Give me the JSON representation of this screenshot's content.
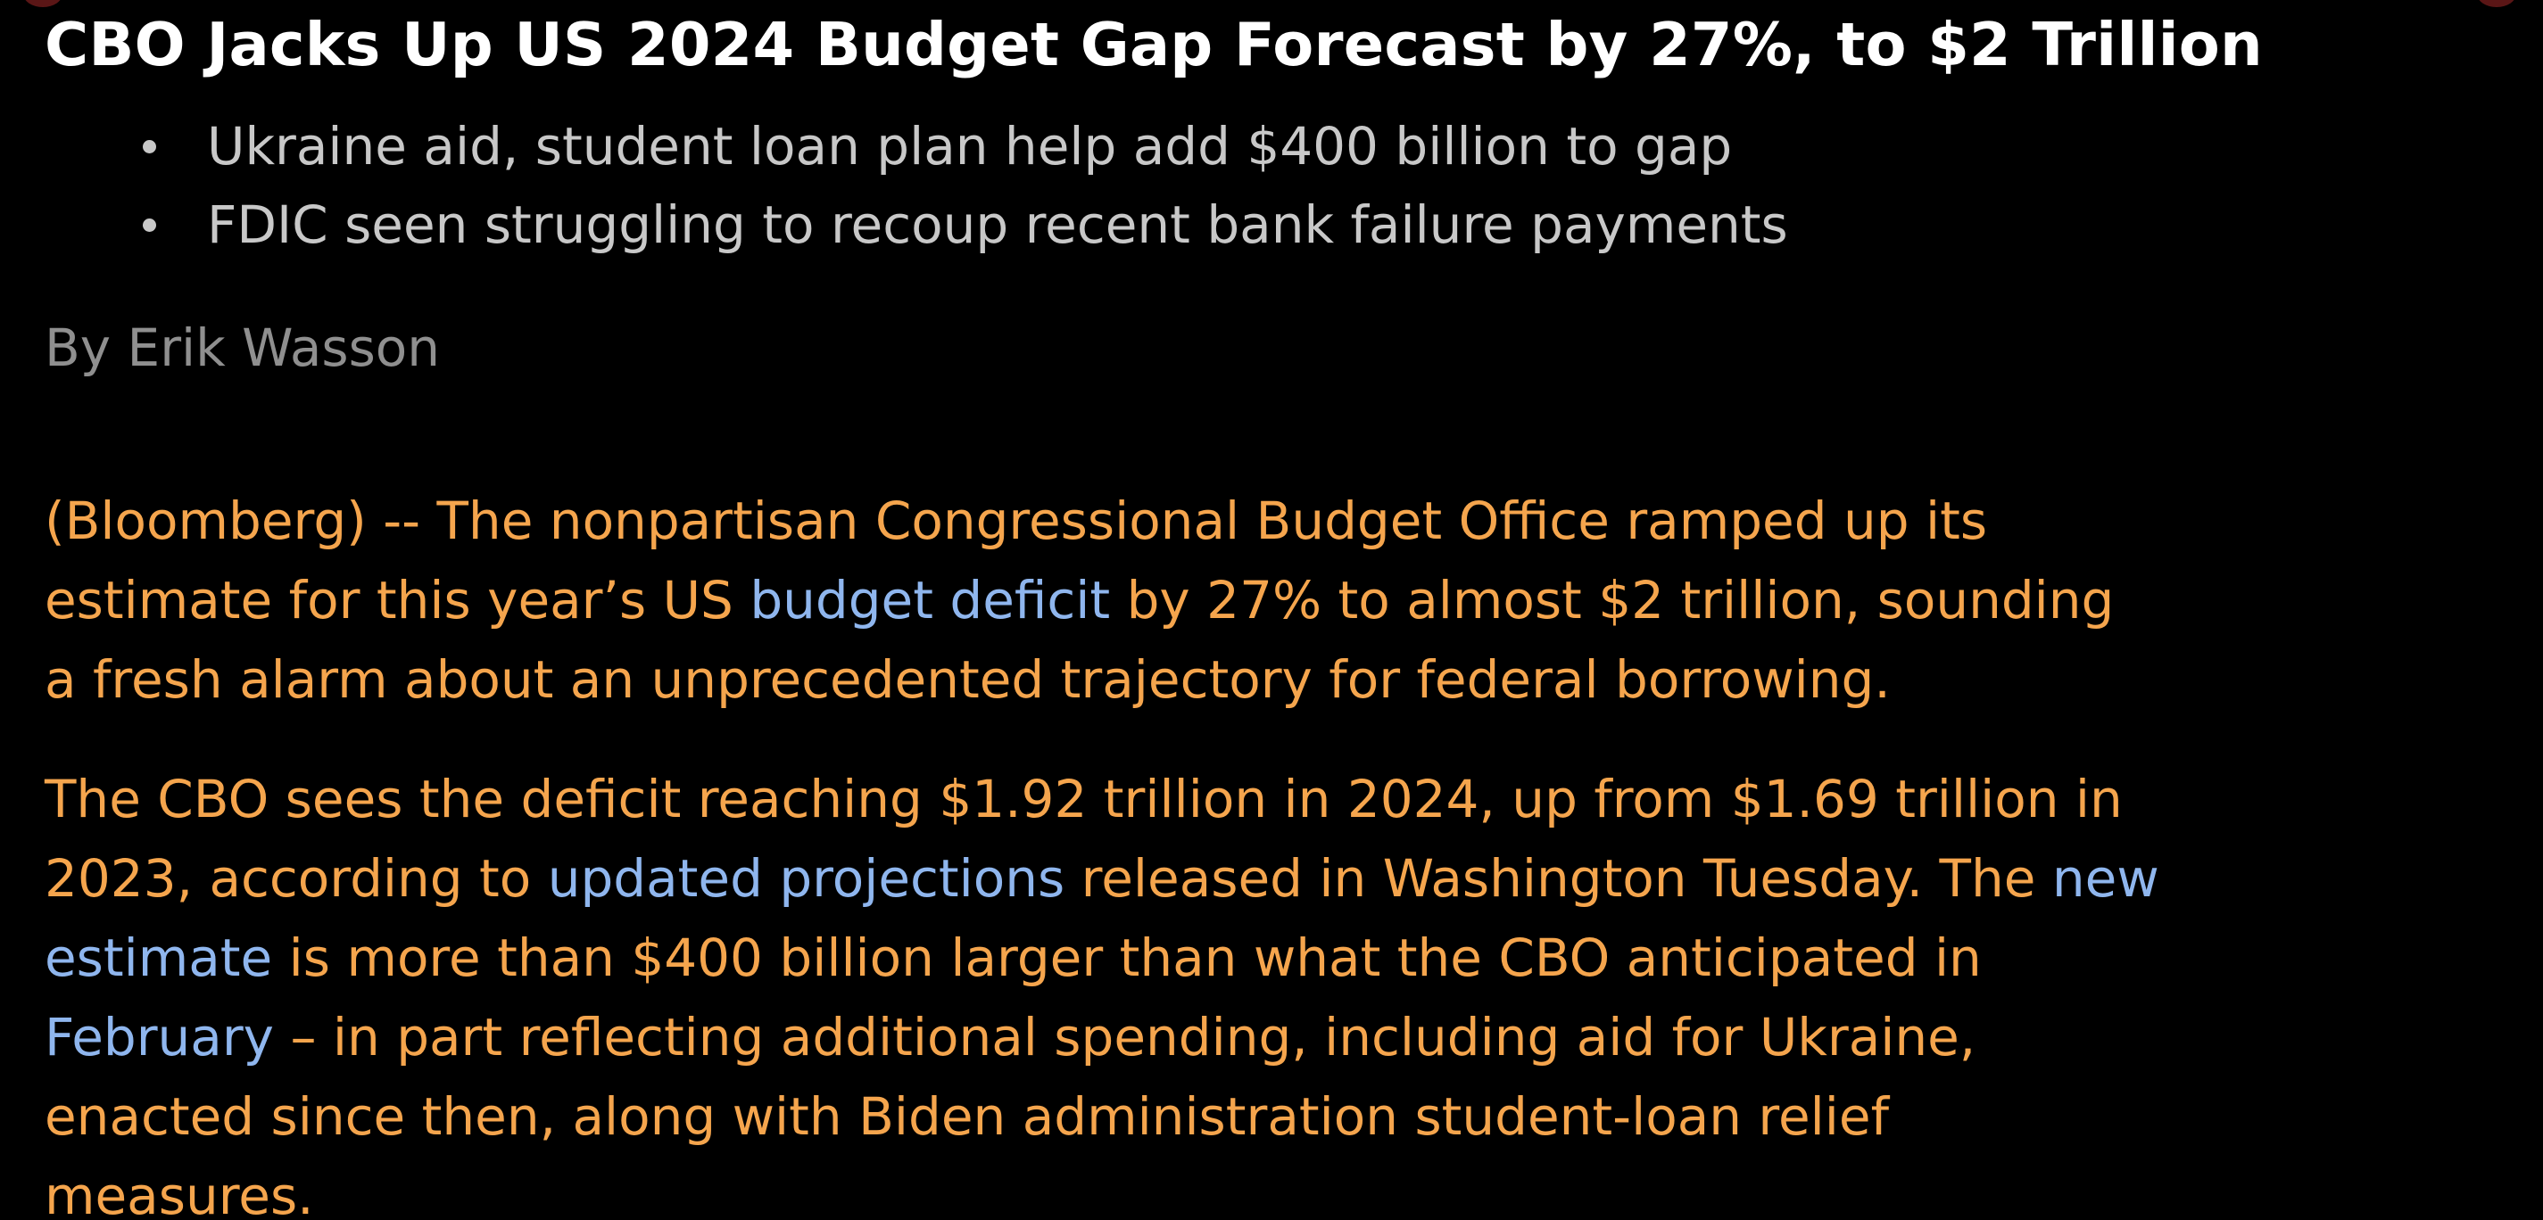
{
  "article": {
    "headline": "CBO Jacks Up US 2024 Budget Gap Forecast by 27%, to $2 Trillion",
    "bullets": [
      "Ukraine aid, student loan plan help add $400 billion to gap",
      "FDIC seen struggling to recoup recent bank failure payments"
    ],
    "byline": "By Erik Wasson",
    "paragraph1": {
      "line1": "(Bloomberg) -- The nonpartisan Congressional Budget Office ramped up its",
      "line2_before": "estimate for this year’s US ",
      "line2_link": "budget deficit",
      "line2_after": " by 27% to almost $2 trillion, sounding",
      "line3": "a fresh alarm about an unprecedented trajectory for federal borrowing."
    },
    "paragraph2": {
      "line1": "The CBO sees the deficit reaching $1.92 trillion in 2024, up from $1.69 trillion in",
      "line2_before": "2023, according to ",
      "line2_link1": "updated projections",
      "line2_middle": " released in Washington Tuesday. The ",
      "line2_link2": "new",
      "line3_link": "estimate",
      "line3_after": " is more than $400 billion larger than what the CBO anticipated in",
      "line4_link": "February",
      "line4_after": " – in part reflecting additional spending, including aid for Ukraine,",
      "line5": "enacted since then, along with Biden administration student-loan relief",
      "line6": "measures."
    }
  },
  "colors": {
    "background": "#000000",
    "headline": "#ffffff",
    "bullet_text": "#c8c8c8",
    "byline": "#8f8f8f",
    "body_text": "#f5a54d",
    "link": "#8fb6ee"
  }
}
